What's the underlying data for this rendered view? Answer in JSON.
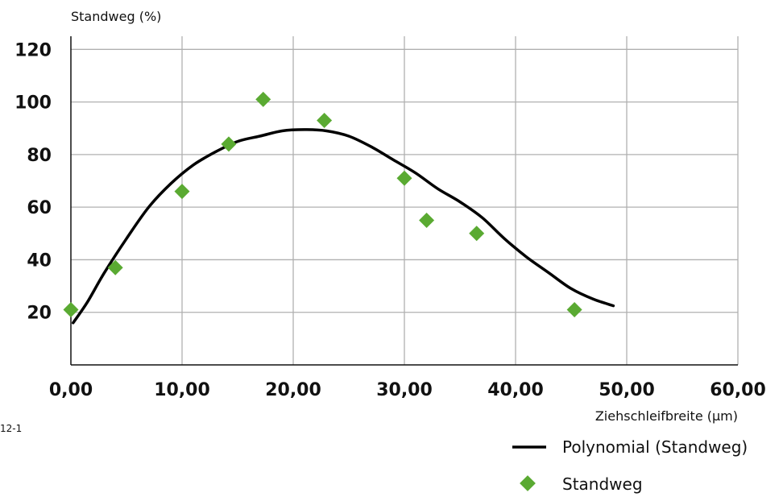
{
  "chart_data": {
    "type": "scatter",
    "ylabel": "Standweg (%)",
    "xlabel": "Ziehschleifbreite (µm)",
    "side_label": "12-1",
    "xlim": [
      0,
      60
    ],
    "ylim": [
      0,
      125
    ],
    "x_ticks": [
      0,
      10,
      20,
      30,
      40,
      50,
      60
    ],
    "x_tick_labels": [
      "0,00",
      "10,00",
      "20,00",
      "30,00",
      "40,00",
      "50,00",
      "60,00"
    ],
    "y_ticks": [
      20,
      40,
      60,
      80,
      100,
      120
    ],
    "y_tick_labels": [
      "20",
      "40",
      "60",
      "80",
      "100",
      "120"
    ],
    "grid": true,
    "legend_position": "bottom-right",
    "series": [
      {
        "name": "Standweg",
        "kind": "scatter",
        "marker": "diamond",
        "color": "#5aaa32",
        "x": [
          0.0,
          4.0,
          10.0,
          14.2,
          17.3,
          22.8,
          30.0,
          32.0,
          36.5,
          45.3
        ],
        "y": [
          21,
          37,
          66,
          84,
          101,
          93,
          71,
          55,
          50,
          21
        ]
      },
      {
        "name": "Polynomial (Standweg)",
        "kind": "line",
        "color": "#000000",
        "x": [
          0.2,
          1.5,
          3,
          5,
          7,
          9,
          11,
          13,
          15,
          17,
          19,
          21,
          23,
          25,
          27,
          29,
          31,
          33,
          35,
          37,
          39,
          41,
          43,
          45,
          47,
          48.8
        ],
        "y": [
          16,
          24,
          35,
          48,
          60,
          69,
          76,
          81,
          85,
          87,
          89,
          89.5,
          89,
          87,
          83,
          78,
          73,
          67,
          62,
          56,
          48,
          41,
          35,
          29,
          25,
          22.5
        ]
      }
    ]
  }
}
